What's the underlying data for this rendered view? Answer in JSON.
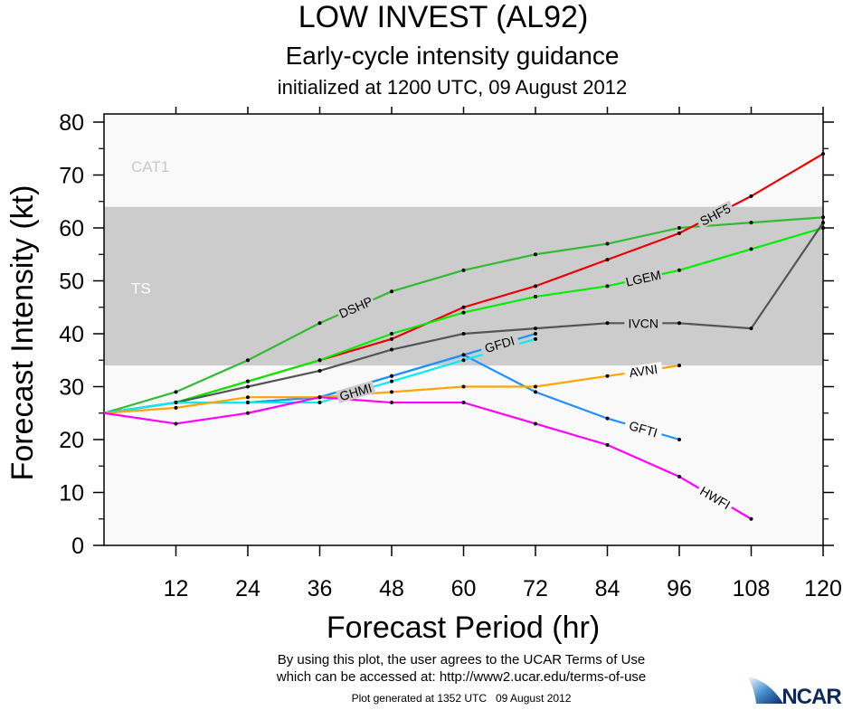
{
  "chart_data": {
    "type": "line",
    "title": "LOW INVEST (AL92)",
    "subtitle": "Early-cycle intensity guidance",
    "subtitle2": "initialized at 1200 UTC, 09 August 2012",
    "xlabel": "Forecast Period (hr)",
    "ylabel": "Forecast Intensity (kt)",
    "xlim": [
      0,
      120
    ],
    "ylim": [
      0,
      81
    ],
    "xticks": [
      12,
      24,
      36,
      48,
      60,
      72,
      84,
      96,
      108,
      120
    ],
    "yticks": [
      0,
      10,
      20,
      30,
      40,
      50,
      60,
      70,
      80
    ],
    "grid": false,
    "bands": [
      {
        "label": "TS",
        "from": 34,
        "to": 64,
        "color": "#cccccc",
        "text_color": "#ffffff"
      },
      {
        "label": "CAT1",
        "from": 64,
        "to": 81,
        "color": "#f9f9f9",
        "text_color": "#c8c8c8"
      }
    ],
    "series": [
      {
        "name": "DSHP",
        "color": "#33bb33",
        "x": [
          0,
          12,
          24,
          36,
          48,
          60,
          72,
          84,
          96,
          108,
          120
        ],
        "y": [
          25,
          29,
          35,
          42,
          48,
          52,
          55,
          57,
          60,
          61,
          62
        ]
      },
      {
        "name": "SHF5",
        "color": "#ee0000",
        "x": [
          0,
          12,
          24,
          36,
          48,
          60,
          72,
          84,
          96,
          108,
          120
        ],
        "y": [
          25,
          27,
          31,
          35,
          39,
          45,
          49,
          54,
          59,
          66,
          74
        ]
      },
      {
        "name": "LGEM",
        "color": "#00ee00",
        "x": [
          0,
          12,
          24,
          36,
          48,
          60,
          72,
          84,
          96,
          108,
          120
        ],
        "y": [
          25,
          27,
          31,
          35,
          40,
          44,
          47,
          49,
          52,
          56,
          60
        ]
      },
      {
        "name": "IVCN",
        "color": "#555555",
        "x": [
          0,
          12,
          24,
          36,
          48,
          60,
          72,
          84,
          96,
          108,
          120
        ],
        "y": [
          25,
          27,
          30,
          33,
          37,
          40,
          41,
          42,
          42,
          41,
          61
        ]
      },
      {
        "name": "GFDI",
        "color": "#1e90ff",
        "x": [
          0,
          12,
          24,
          36,
          48,
          60,
          72
        ],
        "y": [
          25,
          27,
          27,
          28,
          32,
          36,
          40
        ]
      },
      {
        "name": "GFTI",
        "color": "#1e90ff",
        "x": [
          0,
          12,
          24,
          36,
          48,
          60,
          72,
          84,
          96
        ],
        "y": [
          25,
          27,
          27,
          28,
          32,
          36,
          29,
          24,
          20
        ]
      },
      {
        "name": "GHMI",
        "color": "#00eeee",
        "x": [
          0,
          12,
          24,
          36,
          48,
          60,
          72
        ],
        "y": [
          25,
          27,
          27,
          27,
          31,
          35,
          39
        ]
      },
      {
        "name": "AVNI",
        "color": "#ffa500",
        "x": [
          0,
          12,
          24,
          36,
          48,
          60,
          72,
          84,
          96
        ],
        "y": [
          25,
          26,
          28,
          28,
          29,
          30,
          30,
          32,
          34
        ]
      },
      {
        "name": "HWFI",
        "color": "#ff00ff",
        "x": [
          0,
          12,
          24,
          36,
          48,
          60,
          72,
          84,
          96,
          108
        ],
        "y": [
          25,
          23,
          25,
          28,
          27,
          27,
          23,
          19,
          13,
          5
        ]
      }
    ]
  },
  "footer": {
    "terms_line1": "By using this plot, the user agrees to the UCAR Terms of Use",
    "terms_line2": "which can be accessed at: http://www2.ucar.edu/terms-of-use",
    "generated": "Plot generated at 1352 UTC   09 August 2012",
    "logo": "NCAR"
  }
}
